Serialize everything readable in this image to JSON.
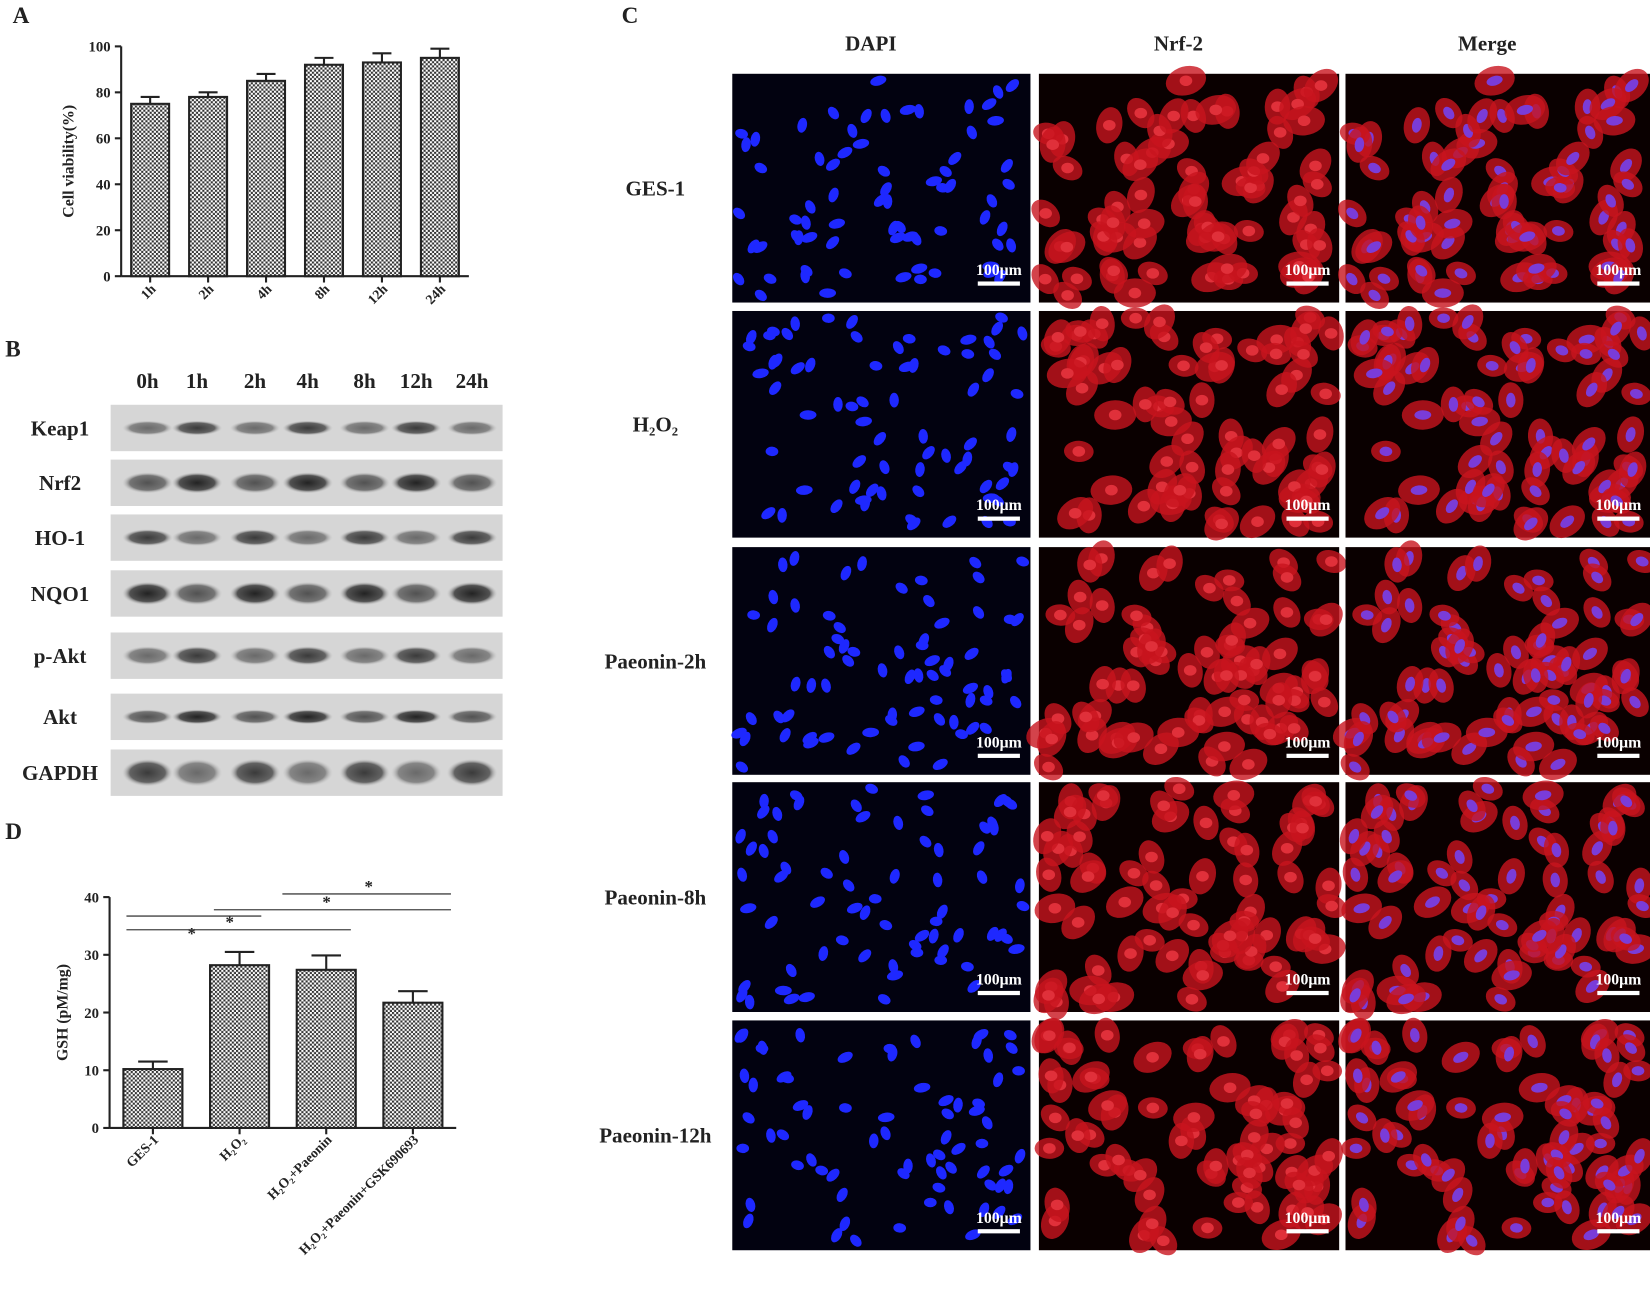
{
  "panels": {
    "a": "A",
    "b": "B",
    "c": "C",
    "d": "D"
  },
  "chart_data": [
    {
      "type": "bar",
      "y_label": "Cell viability(%)",
      "categories": [
        "1h",
        "2h",
        "4h",
        "8h",
        "12h",
        "24h"
      ],
      "values": [
        75,
        78,
        85,
        92,
        93,
        95
      ],
      "errors": [
        3,
        2,
        3,
        3,
        4,
        4
      ],
      "ylim": [
        0,
        100
      ],
      "yticks": [
        0,
        20,
        40,
        60,
        80,
        100
      ]
    },
    {
      "type": "bar",
      "y_label": "GSH (pM/mg)",
      "categories": [
        "GES-1",
        "H₂O₂",
        "H₂O₂+Paeonin",
        "H₂O₂+Paeonin+GSK690693"
      ],
      "values": [
        10.2,
        28.2,
        27.4,
        21.7
      ],
      "errors": [
        1.3,
        2.3,
        2.5,
        2
      ],
      "ylim": [
        0,
        40
      ],
      "yticks": [
        0,
        10,
        20,
        30,
        40
      ],
      "annotations": [
        "*",
        "*",
        "*",
        "*"
      ]
    }
  ],
  "western_blot": {
    "time_points": [
      "0h",
      "1h",
      "2h",
      "4h",
      "8h",
      "12h",
      "24h"
    ],
    "proteins": [
      "Keap1",
      "Nrf2",
      "HO-1",
      "NQO1",
      "p-Akt",
      "Akt",
      "GAPDH"
    ]
  },
  "immunofluorescence": {
    "columns": [
      "DAPI",
      "Nrf-2",
      "Merge"
    ],
    "rows": [
      "GES-1",
      "H₂O₂",
      "Paeonin-2h",
      "Paeonin-8h",
      "Paeonin-12h"
    ],
    "scale_bar": "100μm"
  }
}
